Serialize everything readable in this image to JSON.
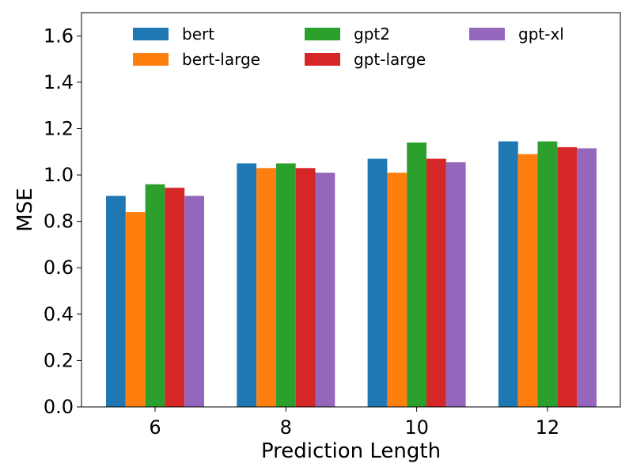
{
  "chart_data": {
    "type": "bar",
    "title": "",
    "xlabel": "Prediction Length",
    "ylabel": "MSE",
    "categories": [
      "6",
      "8",
      "10",
      "12"
    ],
    "ylim": [
      0,
      1.7
    ],
    "yticks": [
      "0.0",
      "0.2",
      "0.4",
      "0.6",
      "0.8",
      "1.0",
      "1.2",
      "1.4",
      "1.6"
    ],
    "legend_position": "top",
    "grid": false,
    "series": [
      {
        "name": "bert",
        "color": "#1f77b4",
        "values": [
          0.91,
          1.05,
          1.07,
          1.145
        ]
      },
      {
        "name": "bert-large",
        "color": "#ff7f0e",
        "values": [
          0.84,
          1.03,
          1.01,
          1.09
        ]
      },
      {
        "name": "gpt2",
        "color": "#2ca02c",
        "values": [
          0.96,
          1.05,
          1.14,
          1.145
        ]
      },
      {
        "name": "gpt-large",
        "color": "#d62728",
        "values": [
          0.945,
          1.03,
          1.07,
          1.12
        ]
      },
      {
        "name": "gpt-xl",
        "color": "#9467bd",
        "values": [
          0.91,
          1.01,
          1.055,
          1.115
        ]
      }
    ]
  }
}
